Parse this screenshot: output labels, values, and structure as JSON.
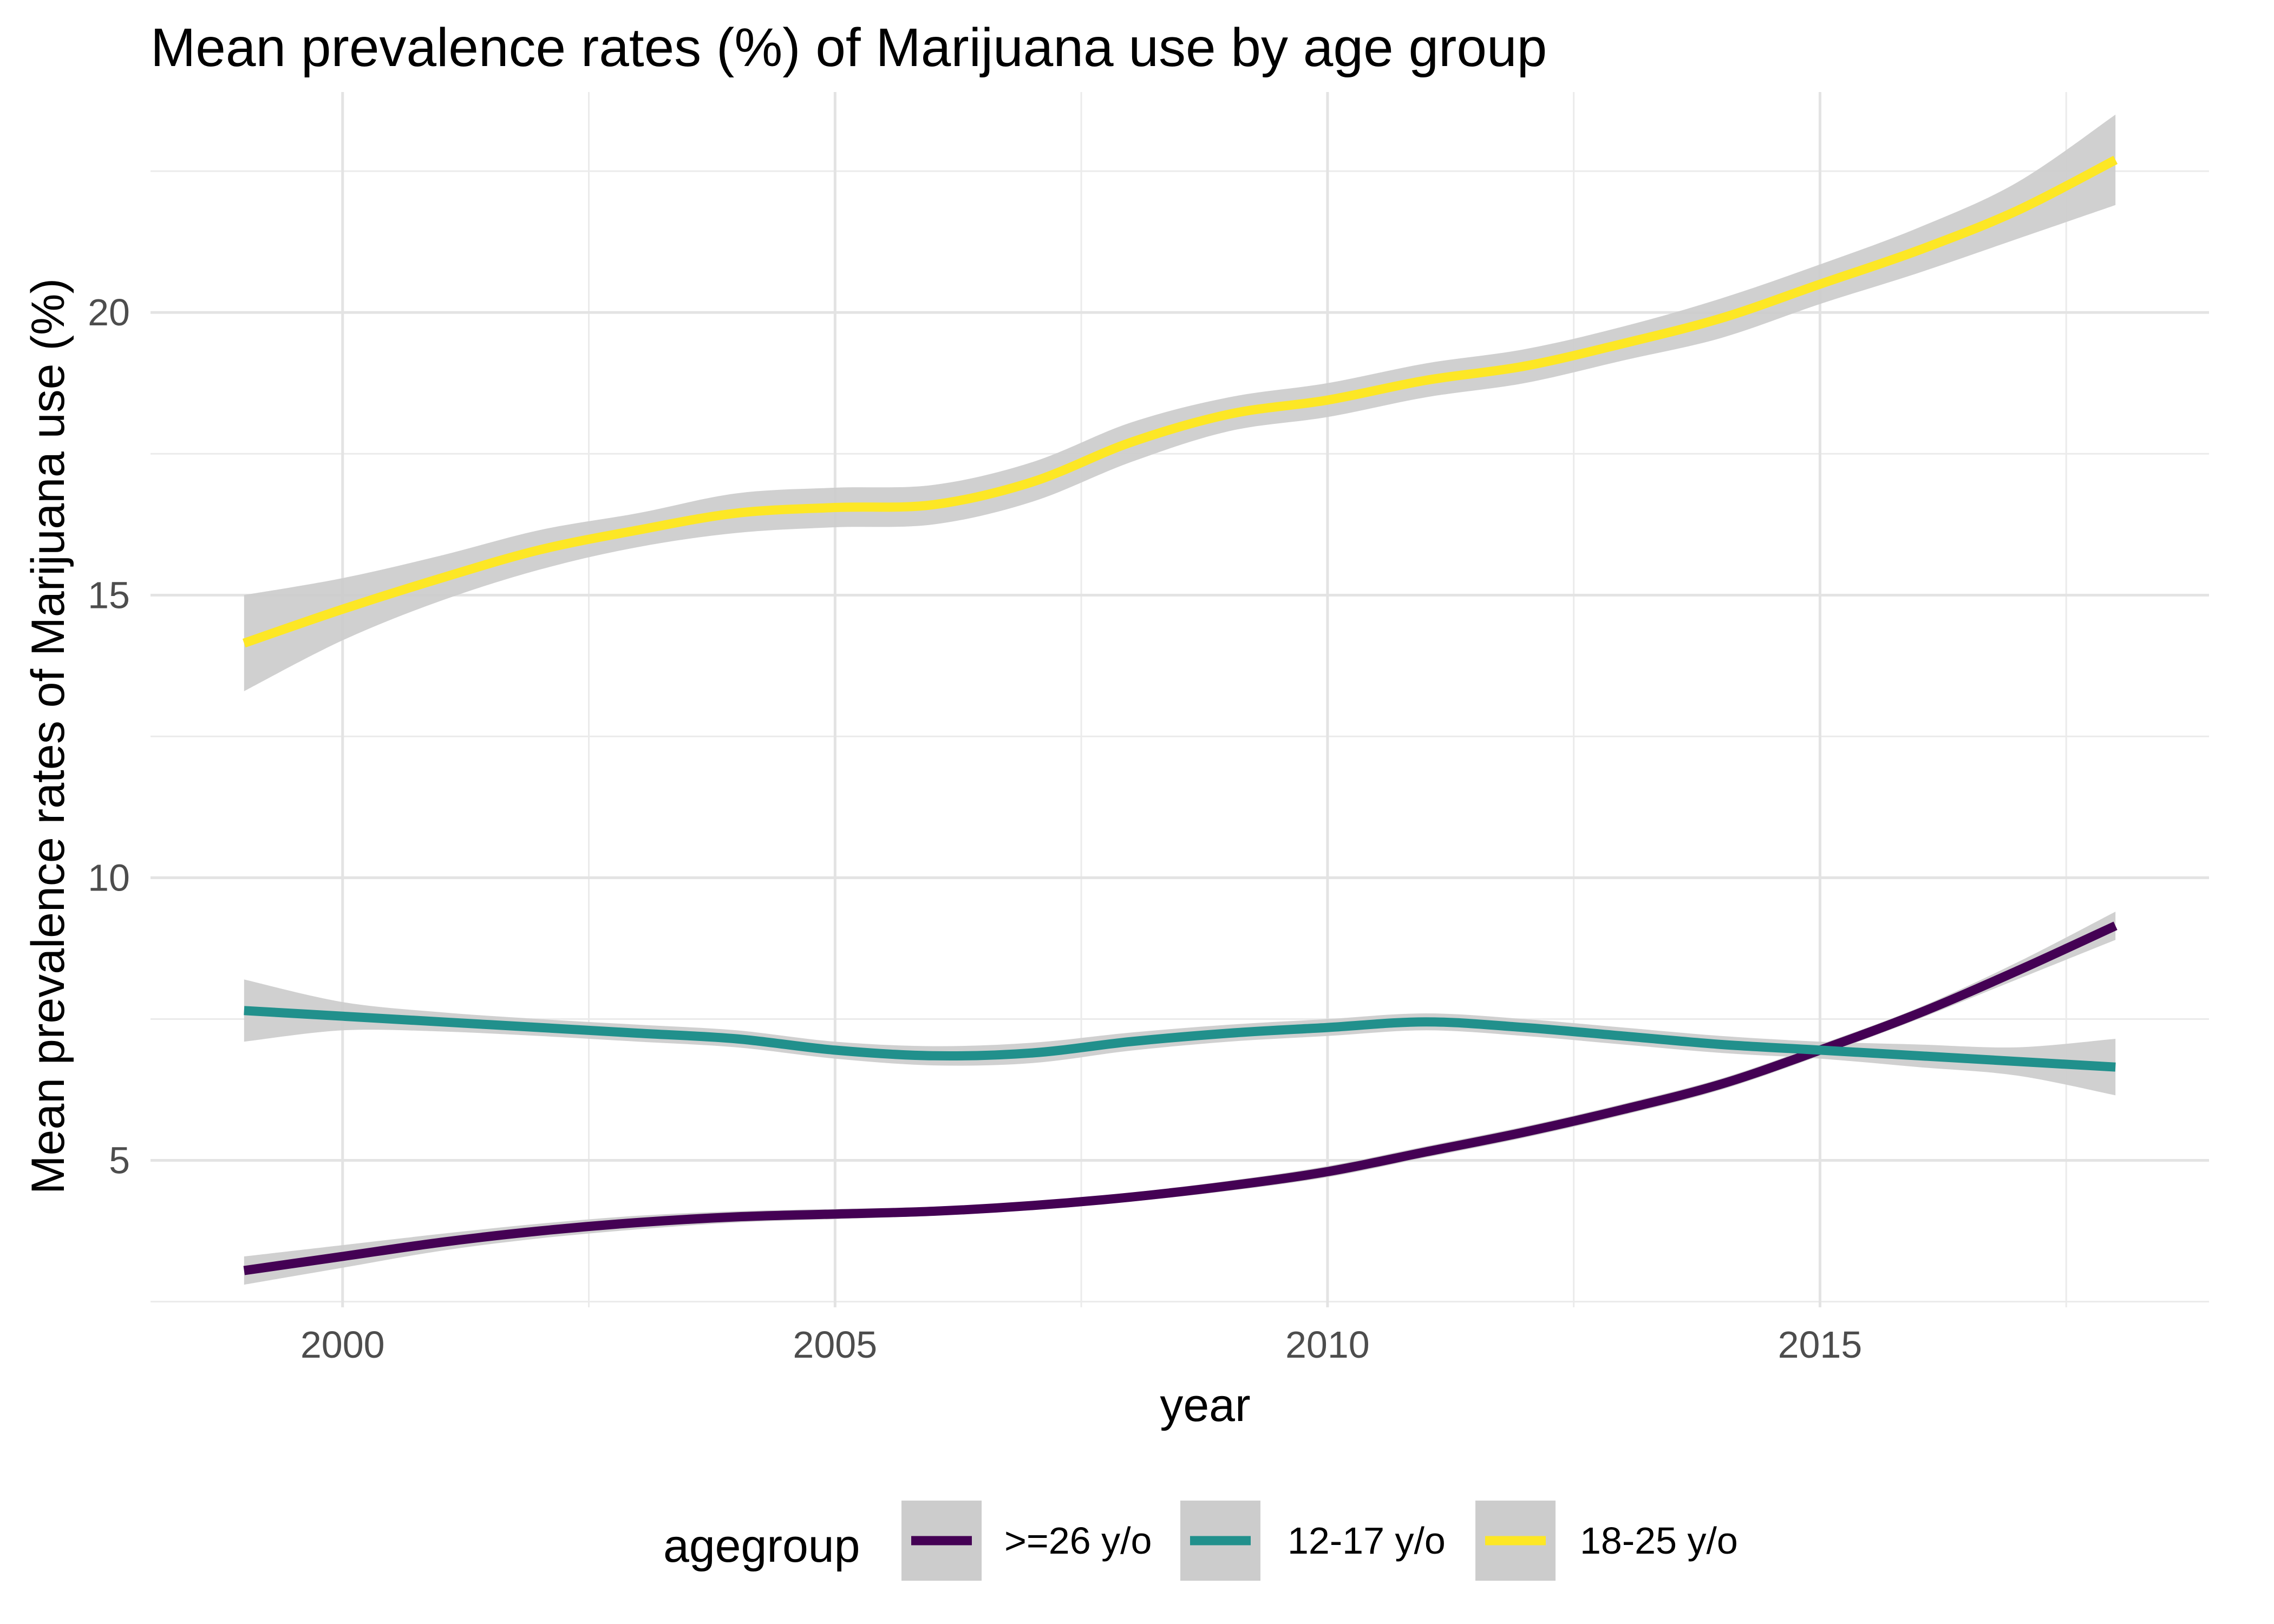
{
  "chart_data": {
    "type": "line",
    "title": "Mean prevalence rates (%) of Marijuana use by age group",
    "xlabel": "year",
    "ylabel": "Mean prevalence rates of Marijuana use (%)",
    "xlim": [
      1998.05,
      2018.95
    ],
    "ylim": [
      2.4,
      23.9
    ],
    "x_ticks": [
      2000,
      2005,
      2010,
      2015
    ],
    "x_tick_labels": [
      "2000",
      "2005",
      "2010",
      "2015"
    ],
    "x_minor_ticks": [
      2002.5,
      2007.5,
      2012.5,
      2017.5
    ],
    "y_ticks": [
      5,
      10,
      15,
      20
    ],
    "y_tick_labels": [
      "5",
      "10",
      "15",
      "20"
    ],
    "y_minor_ticks": [
      2.5,
      7.5,
      12.5,
      17.5,
      22.5
    ],
    "grid": true,
    "legend": {
      "title": "agegroup",
      "position": "bottom"
    },
    "band_color": "#cccccc",
    "x": [
      1999,
      2000,
      2001,
      2002,
      2003,
      2004,
      2005,
      2006,
      2007,
      2008,
      2009,
      2010,
      2011,
      2012,
      2013,
      2014,
      2015,
      2016,
      2017,
      2018
    ],
    "series": [
      {
        "name": ">=26 y/o",
        "color": "#440154",
        "values": [
          3.05,
          3.3,
          3.55,
          3.75,
          3.9,
          4.0,
          4.05,
          4.1,
          4.2,
          4.35,
          4.55,
          4.8,
          5.15,
          5.5,
          5.9,
          6.35,
          6.95,
          7.6,
          8.35,
          9.15
        ],
        "lower": [
          2.8,
          3.1,
          3.4,
          3.62,
          3.78,
          3.9,
          3.96,
          4.02,
          4.12,
          4.27,
          4.46,
          4.7,
          5.05,
          5.4,
          5.8,
          6.25,
          6.85,
          7.5,
          8.2,
          8.9
        ],
        "upper": [
          3.3,
          3.5,
          3.7,
          3.88,
          4.02,
          4.1,
          4.14,
          4.18,
          4.28,
          4.43,
          4.64,
          4.9,
          5.25,
          5.6,
          6.0,
          6.45,
          7.05,
          7.7,
          8.5,
          9.4
        ]
      },
      {
        "name": "12-17 y/o",
        "color": "#21908c",
        "values": [
          7.65,
          7.55,
          7.45,
          7.35,
          7.25,
          7.15,
          6.95,
          6.85,
          6.9,
          7.1,
          7.25,
          7.35,
          7.45,
          7.35,
          7.2,
          7.05,
          6.95,
          6.85,
          6.75,
          6.65
        ],
        "lower": [
          7.1,
          7.3,
          7.28,
          7.2,
          7.1,
          7.0,
          6.8,
          6.68,
          6.72,
          6.94,
          7.1,
          7.2,
          7.3,
          7.2,
          7.05,
          6.9,
          6.8,
          6.65,
          6.5,
          6.15
        ],
        "upper": [
          8.2,
          7.8,
          7.62,
          7.5,
          7.4,
          7.3,
          7.1,
          7.02,
          7.08,
          7.26,
          7.4,
          7.5,
          7.6,
          7.5,
          7.35,
          7.2,
          7.1,
          7.05,
          7.0,
          7.15
        ]
      },
      {
        "name": "18-25 y/o",
        "color": "#fde725",
        "values": [
          14.15,
          14.75,
          15.3,
          15.8,
          16.15,
          16.45,
          16.55,
          16.6,
          17.0,
          17.7,
          18.2,
          18.45,
          18.8,
          19.05,
          19.45,
          19.9,
          20.5,
          21.1,
          21.8,
          22.7
        ],
        "lower": [
          13.3,
          14.2,
          14.9,
          15.45,
          15.85,
          16.1,
          16.2,
          16.25,
          16.65,
          17.35,
          17.9,
          18.15,
          18.5,
          18.75,
          19.15,
          19.55,
          20.15,
          20.7,
          21.3,
          21.9
        ],
        "upper": [
          15.0,
          15.3,
          15.7,
          16.15,
          16.45,
          16.8,
          16.9,
          16.95,
          17.35,
          18.05,
          18.5,
          18.75,
          19.1,
          19.35,
          19.75,
          20.25,
          20.85,
          21.5,
          22.3,
          23.5
        ]
      }
    ]
  }
}
